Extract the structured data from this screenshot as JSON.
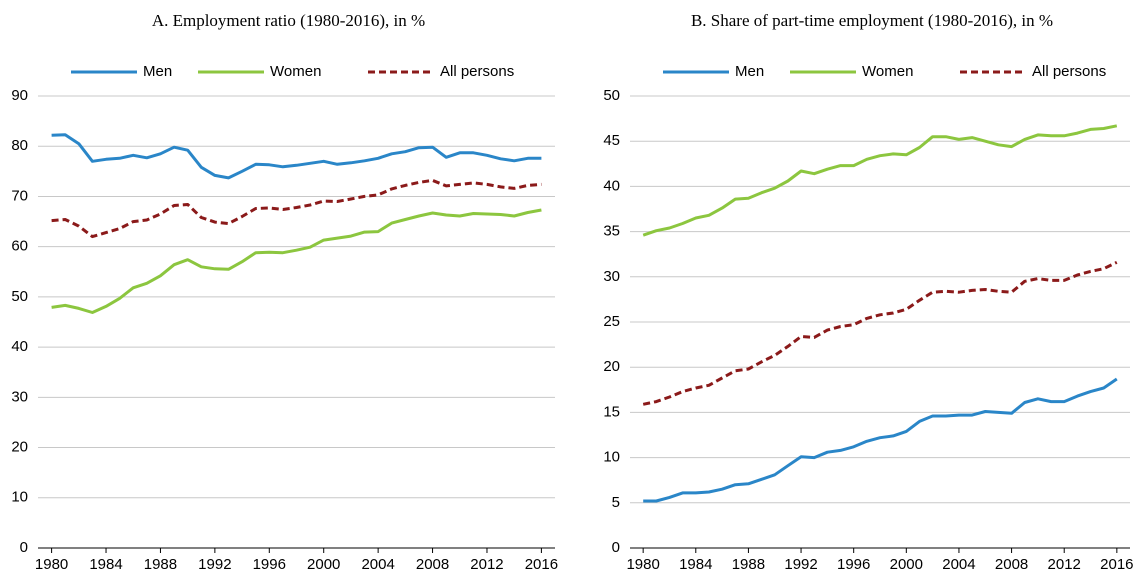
{
  "chart_data": [
    {
      "type": "line",
      "title": "A. Employment ratio (1980-2016), in %",
      "x": [
        1980,
        1981,
        1982,
        1983,
        1984,
        1985,
        1986,
        1987,
        1988,
        1989,
        1990,
        1991,
        1992,
        1993,
        1994,
        1995,
        1996,
        1997,
        1998,
        1999,
        2000,
        2001,
        2002,
        2003,
        2004,
        2005,
        2006,
        2007,
        2008,
        2009,
        2010,
        2011,
        2012,
        2013,
        2014,
        2015,
        2016
      ],
      "series": [
        {
          "name": "Men",
          "color": "#2a86c8",
          "style": "solid",
          "values": [
            82.2,
            82.3,
            80.5,
            77,
            77.4,
            77.6,
            78.2,
            77.7,
            78.5,
            79.8,
            79.2,
            75.8,
            74.2,
            73.7,
            75,
            76.4,
            76.3,
            75.9,
            76.2,
            76.6,
            77,
            76.4,
            76.7,
            77.1,
            77.6,
            78.5,
            78.9,
            79.7,
            79.8,
            77.8,
            78.7,
            78.7,
            78.2,
            77.5,
            77.1,
            77.6,
            77.6
          ]
        },
        {
          "name": "Women",
          "color": "#8cc63f",
          "style": "solid",
          "values": [
            47.9,
            48.3,
            47.7,
            46.9,
            48.1,
            49.7,
            51.8,
            52.7,
            54.2,
            56.4,
            57.4,
            56,
            55.6,
            55.5,
            57,
            58.8,
            58.9,
            58.8,
            59.3,
            59.9,
            61.3,
            61.7,
            62.1,
            62.9,
            63,
            64.7,
            65.4,
            66.1,
            66.7,
            66.3,
            66.1,
            66.6,
            66.5,
            66.4,
            66.1,
            66.8,
            67.3
          ]
        },
        {
          "name": "All persons",
          "color": "#8b1a1a",
          "style": "dashed",
          "values": [
            65.2,
            65.4,
            64.1,
            62,
            62.8,
            63.6,
            65,
            65.3,
            66.5,
            68.2,
            68.4,
            65.8,
            64.9,
            64.6,
            66,
            67.6,
            67.7,
            67.4,
            67.8,
            68.3,
            69.1,
            69,
            69.5,
            70,
            70.3,
            71.5,
            72.2,
            72.8,
            73.2,
            72.1,
            72.4,
            72.7,
            72.4,
            71.9,
            71.6,
            72.2,
            72.4
          ]
        }
      ],
      "xlim": [
        1979,
        2017
      ],
      "xticks": [
        1980,
        1984,
        1988,
        1992,
        1996,
        2000,
        2004,
        2008,
        2012,
        2016
      ],
      "ylim": [
        0,
        90
      ],
      "yticks": [
        0,
        10,
        20,
        30,
        40,
        50,
        60,
        70,
        80,
        90
      ],
      "grid": true
    },
    {
      "type": "line",
      "title": "B. Share of part-time employment (1980-2016), in %",
      "x": [
        1980,
        1981,
        1982,
        1983,
        1984,
        1985,
        1986,
        1987,
        1988,
        1989,
        1990,
        1991,
        1992,
        1993,
        1994,
        1995,
        1996,
        1997,
        1998,
        1999,
        2000,
        2001,
        2002,
        2003,
        2004,
        2005,
        2006,
        2007,
        2008,
        2009,
        2010,
        2011,
        2012,
        2013,
        2014,
        2015,
        2016
      ],
      "series": [
        {
          "name": "Men",
          "color": "#2a86c8",
          "style": "solid",
          "values": [
            5.2,
            5.2,
            5.6,
            6.1,
            6.1,
            6.2,
            6.5,
            7,
            7.1,
            7.6,
            8.1,
            9.1,
            10.1,
            10,
            10.6,
            10.8,
            11.2,
            11.8,
            12.2,
            12.4,
            12.9,
            14,
            14.6,
            14.6,
            14.7,
            14.7,
            15.1,
            15,
            14.9,
            16.1,
            16.5,
            16.2,
            16.2,
            16.8,
            17.3,
            17.7,
            18.7
          ]
        },
        {
          "name": "Women",
          "color": "#8cc63f",
          "style": "solid",
          "values": [
            34.6,
            35.1,
            35.4,
            35.9,
            36.5,
            36.8,
            37.6,
            38.6,
            38.7,
            39.3,
            39.8,
            40.6,
            41.7,
            41.4,
            41.9,
            42.3,
            42.3,
            43,
            43.4,
            43.6,
            43.5,
            44.3,
            45.5,
            45.5,
            45.2,
            45.4,
            45,
            44.6,
            44.4,
            45.2,
            45.7,
            45.6,
            45.6,
            45.9,
            46.3,
            46.4,
            46.7
          ]
        },
        {
          "name": "All persons",
          "color": "#8b1a1a",
          "style": "dashed",
          "values": [
            15.9,
            16.2,
            16.7,
            17.3,
            17.7,
            18,
            18.8,
            19.6,
            19.8,
            20.6,
            21.3,
            22.3,
            23.4,
            23.3,
            24.1,
            24.5,
            24.7,
            25.4,
            25.8,
            26,
            26.4,
            27.4,
            28.3,
            28.4,
            28.3,
            28.5,
            28.6,
            28.4,
            28.3,
            29.5,
            29.8,
            29.6,
            29.6,
            30.2,
            30.6,
            30.9,
            31.6
          ]
        }
      ],
      "xlim": [
        1979,
        2017
      ],
      "xticks": [
        1980,
        1984,
        1988,
        1992,
        1996,
        2000,
        2004,
        2008,
        2012,
        2016
      ],
      "ylim": [
        0,
        50
      ],
      "yticks": [
        0,
        5,
        10,
        15,
        20,
        25,
        30,
        35,
        40,
        45,
        50
      ],
      "grid": true
    }
  ]
}
